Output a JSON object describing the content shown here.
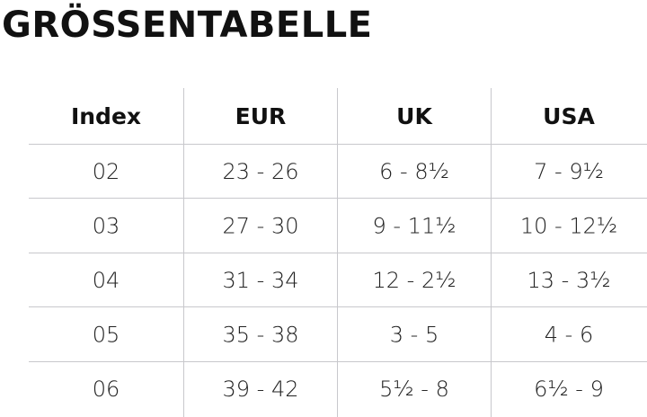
{
  "header": {
    "title": "GRÖSSENTABELLE"
  },
  "table": {
    "columns": [
      "Index",
      "EUR",
      "UK",
      "USA"
    ],
    "rows": [
      [
        "02",
        "23 - 26",
        "6 - 8½",
        "7 - 9½"
      ],
      [
        "03",
        "27 - 30",
        "9 - 11½",
        "10 - 12½"
      ],
      [
        "04",
        "31 - 34",
        "12 - 2½",
        "13 - 3½"
      ],
      [
        "05",
        "35 - 38",
        "3 - 5",
        "4 - 6"
      ],
      [
        "06",
        "39 - 42",
        "5½ - 8",
        "6½ - 9"
      ]
    ]
  }
}
